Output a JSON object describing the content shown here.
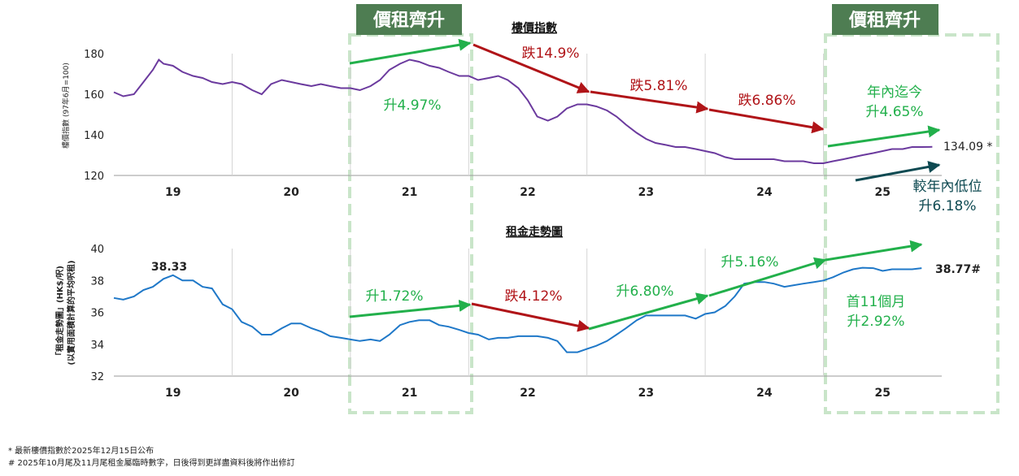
{
  "badge_label": "價租齊升",
  "colors": {
    "hpi_line": "#6b3a9e",
    "rent_line": "#1f78c8",
    "green": "#22b04b",
    "red": "#b01418",
    "teal": "#0e4a52",
    "badge_bg": "#4e7d52",
    "highlight_border": "#c9e5c9"
  },
  "chart_data": [
    {
      "type": "line",
      "title": "樓價指數",
      "ylabel": "樓價指數 (97年6月=100)",
      "ylim": [
        120,
        180
      ],
      "yticks": [
        120,
        140,
        160,
        180
      ],
      "x_labels": [
        "19",
        "20",
        "21",
        "22",
        "23",
        "24",
        "25"
      ],
      "x_range": [
        2019,
        2026
      ],
      "series": [
        {
          "x": [
            2019.0,
            2019.04,
            2019.08,
            2019.17,
            2019.25,
            2019.33,
            2019.38,
            2019.42,
            2019.5,
            2019.58,
            2019.67,
            2019.75,
            2019.83,
            2019.92,
            2020.0,
            2020.08,
            2020.17,
            2020.25,
            2020.33,
            2020.42,
            2020.5,
            2020.58,
            2020.67,
            2020.75,
            2020.83,
            2020.92,
            2021.0,
            2021.08,
            2021.17,
            2021.25,
            2021.33,
            2021.42,
            2021.5,
            2021.58,
            2021.67,
            2021.75,
            2021.83,
            2021.92,
            2022.0,
            2022.08,
            2022.17,
            2022.25,
            2022.33,
            2022.42,
            2022.5,
            2022.58,
            2022.67,
            2022.75,
            2022.83,
            2022.92,
            2023.0,
            2023.08,
            2023.17,
            2023.25,
            2023.33,
            2023.42,
            2023.5,
            2023.58,
            2023.67,
            2023.75,
            2023.83,
            2023.92,
            2024.0,
            2024.08,
            2024.17,
            2024.25,
            2024.33,
            2024.42,
            2024.5,
            2024.58,
            2024.67,
            2024.75,
            2024.83,
            2024.92,
            2025.0,
            2025.08,
            2025.17,
            2025.25,
            2025.33,
            2025.42,
            2025.5,
            2025.58,
            2025.67,
            2025.75,
            2025.83,
            2025.92
          ],
          "values": [
            161,
            160,
            159,
            160,
            166,
            172,
            177,
            175,
            174,
            171,
            169,
            168,
            166,
            165,
            166,
            165,
            162,
            160,
            165,
            167,
            166,
            165,
            164,
            165,
            164,
            163,
            163,
            162,
            164,
            167,
            172,
            175,
            177,
            176,
            174,
            173,
            171,
            169,
            169,
            167,
            168,
            169,
            167,
            163,
            157,
            149,
            147,
            149,
            153,
            155,
            155,
            154,
            152,
            149,
            145,
            141,
            138,
            136,
            135,
            134,
            134,
            133,
            132,
            131,
            129,
            128,
            128,
            128,
            128,
            128,
            127,
            127,
            127,
            126,
            126,
            127,
            128,
            129,
            130,
            131,
            132,
            133,
            133,
            134,
            134,
            134.09
          ]
        }
      ],
      "end_label": "134.09 *",
      "annotations": [
        {
          "text": "升4.97%",
          "color": "green"
        },
        {
          "text": "跌14.9%",
          "color": "red"
        },
        {
          "text": "跌5.81%",
          "color": "red"
        },
        {
          "text": "跌6.86%",
          "color": "red"
        },
        {
          "text": "年內迄今",
          "color": "green"
        },
        {
          "text": "升4.65%",
          "color": "green"
        },
        {
          "text": "較年內低位",
          "color": "teal"
        },
        {
          "text": "升6.18%",
          "color": "teal"
        }
      ]
    },
    {
      "type": "line",
      "title": "租金走勢圖",
      "ylabel": "「租金走勢圖」(HK$/呎)",
      "ylabel2": "(以實用面積計算的平均呎租)",
      "ylim": [
        32,
        40
      ],
      "yticks": [
        32,
        34,
        36,
        38,
        40
      ],
      "x_labels": [
        "19",
        "20",
        "21",
        "22",
        "23",
        "24",
        "25"
      ],
      "x_range": [
        2019,
        2026
      ],
      "series": [
        {
          "x": [
            2019.0,
            2019.08,
            2019.17,
            2019.25,
            2019.33,
            2019.42,
            2019.5,
            2019.58,
            2019.67,
            2019.75,
            2019.83,
            2019.92,
            2020.0,
            2020.08,
            2020.17,
            2020.25,
            2020.33,
            2020.42,
            2020.5,
            2020.58,
            2020.67,
            2020.75,
            2020.83,
            2020.92,
            2021.0,
            2021.08,
            2021.17,
            2021.25,
            2021.33,
            2021.42,
            2021.5,
            2021.58,
            2021.67,
            2021.75,
            2021.83,
            2021.92,
            2022.0,
            2022.08,
            2022.17,
            2022.25,
            2022.33,
            2022.42,
            2022.5,
            2022.58,
            2022.67,
            2022.75,
            2022.83,
            2022.92,
            2023.0,
            2023.08,
            2023.17,
            2023.25,
            2023.33,
            2023.42,
            2023.5,
            2023.58,
            2023.67,
            2023.75,
            2023.83,
            2023.92,
            2024.0,
            2024.08,
            2024.17,
            2024.25,
            2024.33,
            2024.42,
            2024.5,
            2024.58,
            2024.67,
            2024.75,
            2024.83,
            2024.92,
            2025.0,
            2025.08,
            2025.17,
            2025.25,
            2025.33,
            2025.42,
            2025.5,
            2025.58,
            2025.67,
            2025.75,
            2025.83
          ],
          "values": [
            36.9,
            36.8,
            37.0,
            37.4,
            37.6,
            38.1,
            38.33,
            38.0,
            38.0,
            37.6,
            37.5,
            36.5,
            36.2,
            35.4,
            35.1,
            34.6,
            34.6,
            35.0,
            35.3,
            35.3,
            35.0,
            34.8,
            34.5,
            34.4,
            34.3,
            34.2,
            34.3,
            34.2,
            34.6,
            35.2,
            35.4,
            35.5,
            35.5,
            35.2,
            35.1,
            34.9,
            34.7,
            34.6,
            34.3,
            34.4,
            34.4,
            34.5,
            34.5,
            34.5,
            34.4,
            34.2,
            33.5,
            33.5,
            33.7,
            33.9,
            34.2,
            34.6,
            35.0,
            35.5,
            35.8,
            35.8,
            35.8,
            35.8,
            35.8,
            35.6,
            35.9,
            36.0,
            36.4,
            37.0,
            37.8,
            37.9,
            37.9,
            37.8,
            37.6,
            37.7,
            37.8,
            37.9,
            38.0,
            38.2,
            38.5,
            38.7,
            38.8,
            38.77,
            38.6,
            38.7,
            38.7,
            38.7,
            38.77
          ]
        }
      ],
      "peak_label": "38.33",
      "end_label": "38.77#",
      "annotations": [
        {
          "text": "升1.72%",
          "color": "green"
        },
        {
          "text": "跌4.12%",
          "color": "red"
        },
        {
          "text": "升6.80%",
          "color": "green"
        },
        {
          "text": "升5.16%",
          "color": "green"
        },
        {
          "text": "首11個月",
          "color": "green"
        },
        {
          "text": "升2.92%",
          "color": "green"
        }
      ]
    }
  ],
  "footnotes": [
    "* 最新樓價指數於2025年12月15日公布",
    "# 2025年10月尾及11月尾租金屬臨時數字，日後得到更詳盡資料後將作出修訂"
  ]
}
